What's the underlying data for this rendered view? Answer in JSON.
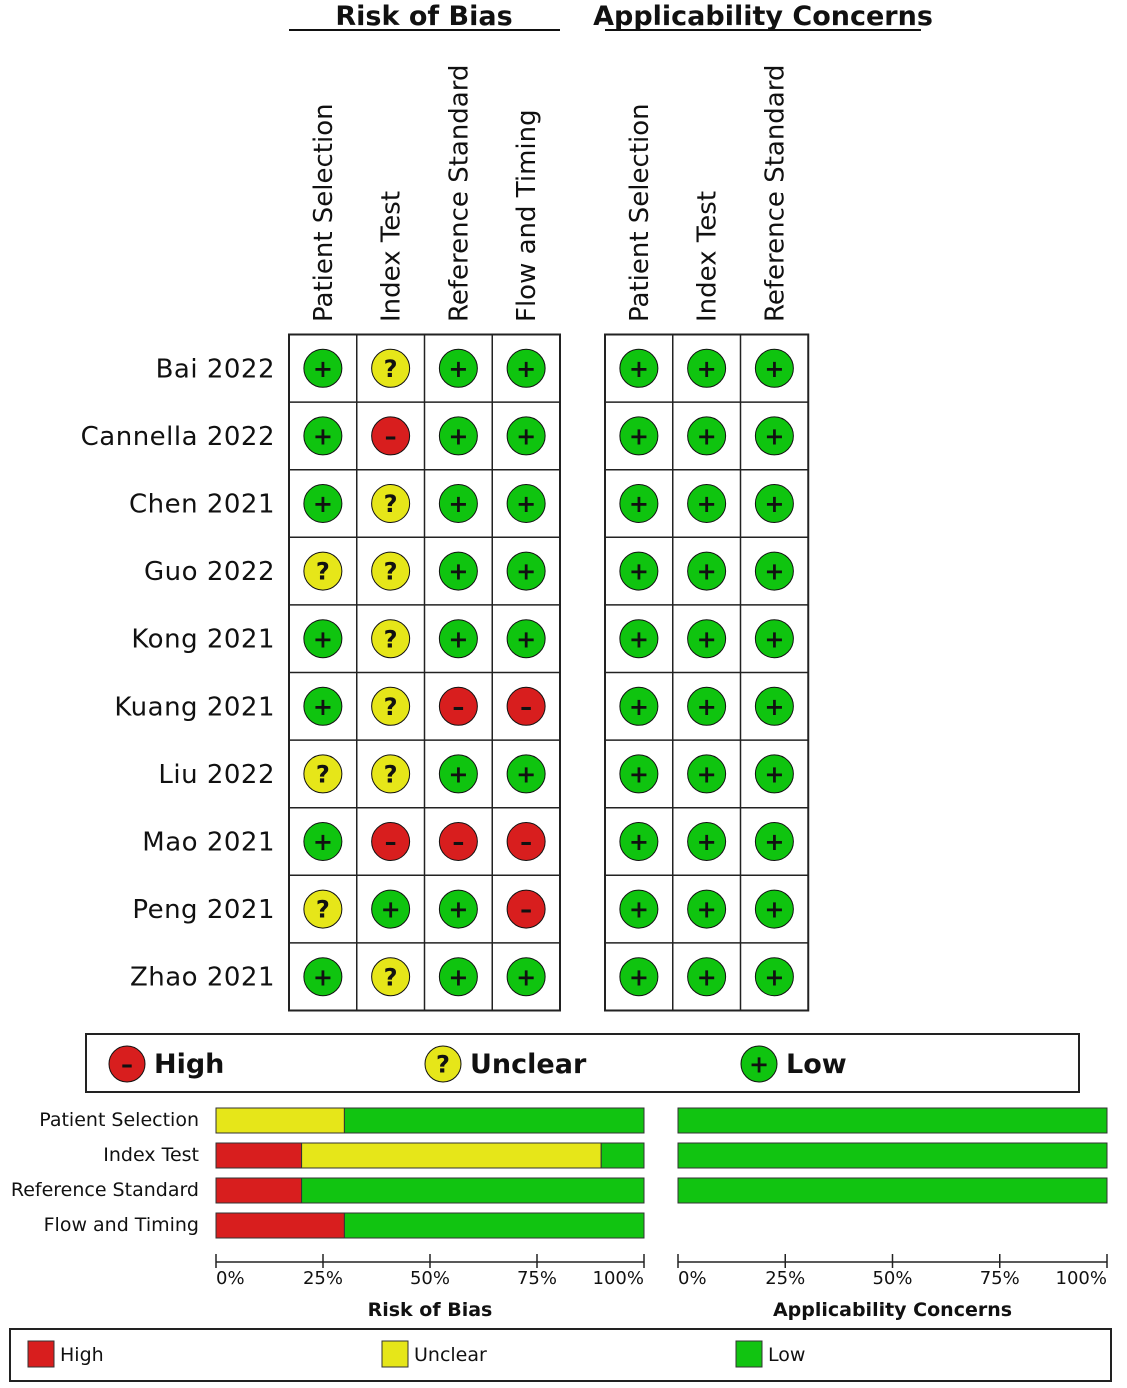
{
  "colors": {
    "high": "#d81e1e",
    "unclear": "#e6e619",
    "low": "#0fc40f",
    "bar_high": "#d81e1e",
    "bar_unclear": "#e6e619",
    "bar_low": "#11c411",
    "border": "#222222"
  },
  "icons": {
    "high": "minus-icon",
    "unclear": "question-icon",
    "low": "plus-icon"
  },
  "symbols": {
    "high": "–",
    "unclear": "?",
    "low": "+"
  },
  "chart_data": [
    {
      "type": "table",
      "groups": [
        {
          "label": "Risk of Bias",
          "domains": [
            "Patient Selection",
            "Index Test",
            "Reference Standard",
            "Flow and Timing"
          ]
        },
        {
          "label": "Applicability Concerns",
          "domains": [
            "Patient Selection",
            "Index Test",
            "Reference Standard"
          ]
        }
      ],
      "studies": [
        {
          "name": "Bai 2022",
          "risk": [
            "low",
            "unclear",
            "low",
            "low"
          ],
          "applicability": [
            "low",
            "low",
            "low"
          ]
        },
        {
          "name": "Cannella 2022",
          "risk": [
            "low",
            "high",
            "low",
            "low"
          ],
          "applicability": [
            "low",
            "low",
            "low"
          ]
        },
        {
          "name": "Chen 2021",
          "risk": [
            "low",
            "unclear",
            "low",
            "low"
          ],
          "applicability": [
            "low",
            "low",
            "low"
          ]
        },
        {
          "name": "Guo 2022",
          "risk": [
            "unclear",
            "unclear",
            "low",
            "low"
          ],
          "applicability": [
            "low",
            "low",
            "low"
          ]
        },
        {
          "name": "Kong 2021",
          "risk": [
            "low",
            "unclear",
            "low",
            "low"
          ],
          "applicability": [
            "low",
            "low",
            "low"
          ]
        },
        {
          "name": "Kuang 2021",
          "risk": [
            "low",
            "unclear",
            "high",
            "high"
          ],
          "applicability": [
            "low",
            "low",
            "low"
          ]
        },
        {
          "name": "Liu 2022",
          "risk": [
            "unclear",
            "unclear",
            "low",
            "low"
          ],
          "applicability": [
            "low",
            "low",
            "low"
          ]
        },
        {
          "name": "Mao 2021",
          "risk": [
            "low",
            "high",
            "high",
            "high"
          ],
          "applicability": [
            "low",
            "low",
            "low"
          ]
        },
        {
          "name": "Peng 2021",
          "risk": [
            "unclear",
            "low",
            "low",
            "high"
          ],
          "applicability": [
            "low",
            "low",
            "low"
          ]
        },
        {
          "name": "Zhao 2021",
          "risk": [
            "low",
            "unclear",
            "low",
            "low"
          ],
          "applicability": [
            "low",
            "low",
            "low"
          ]
        }
      ],
      "legend": [
        {
          "key": "high",
          "label": "High"
        },
        {
          "key": "unclear",
          "label": "Unclear"
        },
        {
          "key": "low",
          "label": "Low"
        }
      ]
    },
    {
      "type": "bar",
      "orientation": "horizontal",
      "stacked": true,
      "percent": true,
      "categories": [
        "Patient Selection",
        "Index Test",
        "Reference Standard",
        "Flow and Timing"
      ],
      "panels": [
        {
          "title": "Risk of Bias",
          "series": [
            {
              "name": "High",
              "key": "high",
              "values": [
                0,
                20,
                20,
                30
              ]
            },
            {
              "name": "Unclear",
              "key": "unclear",
              "values": [
                30,
                70,
                0,
                0
              ]
            },
            {
              "name": "Low",
              "key": "low",
              "values": [
                70,
                10,
                80,
                70
              ]
            }
          ]
        },
        {
          "title": "Applicability Concerns",
          "series": [
            {
              "name": "High",
              "key": "high",
              "values": [
                0,
                0,
                0,
                null
              ]
            },
            {
              "name": "Unclear",
              "key": "unclear",
              "values": [
                0,
                0,
                0,
                null
              ]
            },
            {
              "name": "Low",
              "key": "low",
              "values": [
                100,
                100,
                100,
                null
              ]
            }
          ]
        }
      ],
      "xticks": [
        "0%",
        "25%",
        "50%",
        "75%",
        "100%"
      ],
      "xlim": [
        0,
        100
      ],
      "legend": [
        {
          "key": "high",
          "label": "High"
        },
        {
          "key": "unclear",
          "label": "Unclear"
        },
        {
          "key": "low",
          "label": "Low"
        }
      ]
    }
  ]
}
